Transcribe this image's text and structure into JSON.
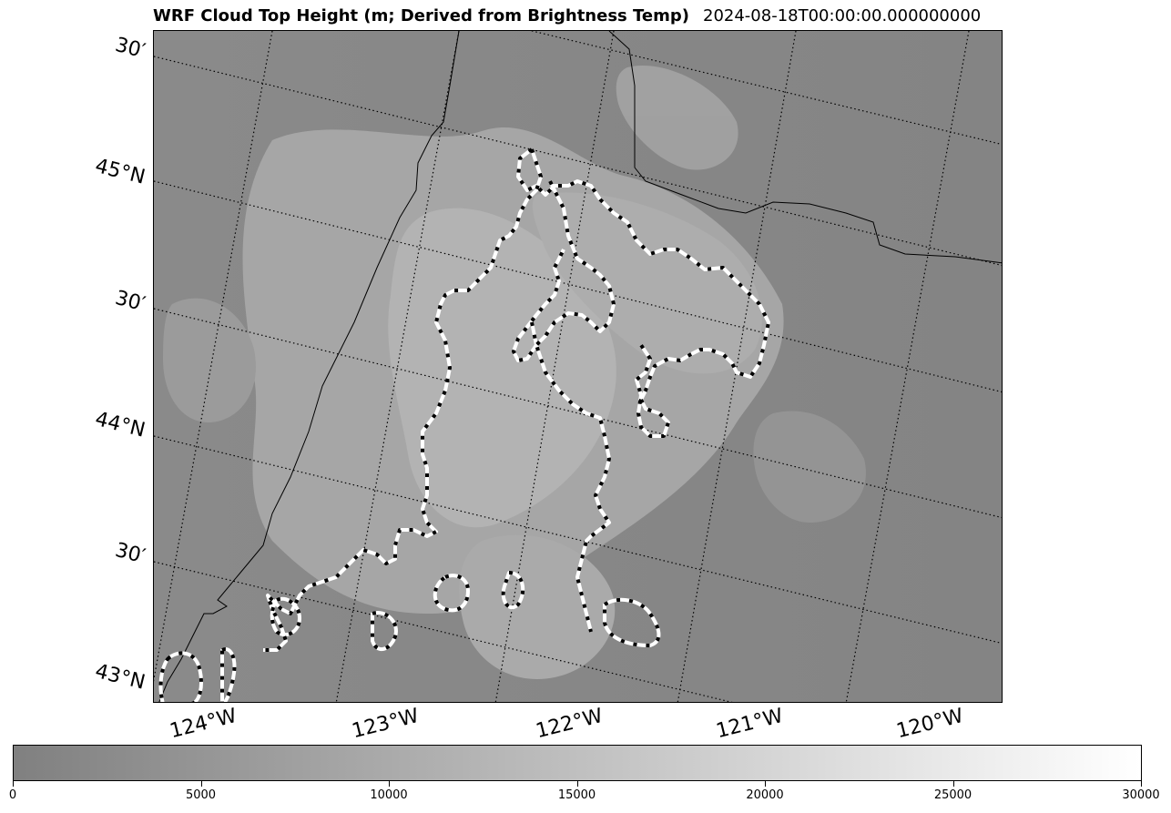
{
  "title": {
    "left": "WRF Cloud Top Height (m; Derived from Brightness Temp)",
    "right": "2024-08-18T00:00:00.000000000"
  },
  "colors": {
    "field_base": "#8c8c8c",
    "field_mid": "#a6a6a6",
    "field_light": "#bcbcbc",
    "contour_white": "#ffffff",
    "contour_black": "#000000",
    "coastline": "#000000"
  },
  "map": {
    "lat_labels": [
      "30′",
      "45°N",
      "30′",
      "44°N",
      "30′",
      "43°N"
    ],
    "lon_labels": [
      "124°W",
      "123°W",
      "122°W",
      "121°W",
      "120°W"
    ]
  },
  "colorbar": {
    "min": 0,
    "max": 30000,
    "ticks": [
      "0",
      "5000",
      "10000",
      "15000",
      "20000",
      "25000",
      "30000"
    ],
    "color_low": "#808080",
    "color_high": "#ffffff"
  }
}
